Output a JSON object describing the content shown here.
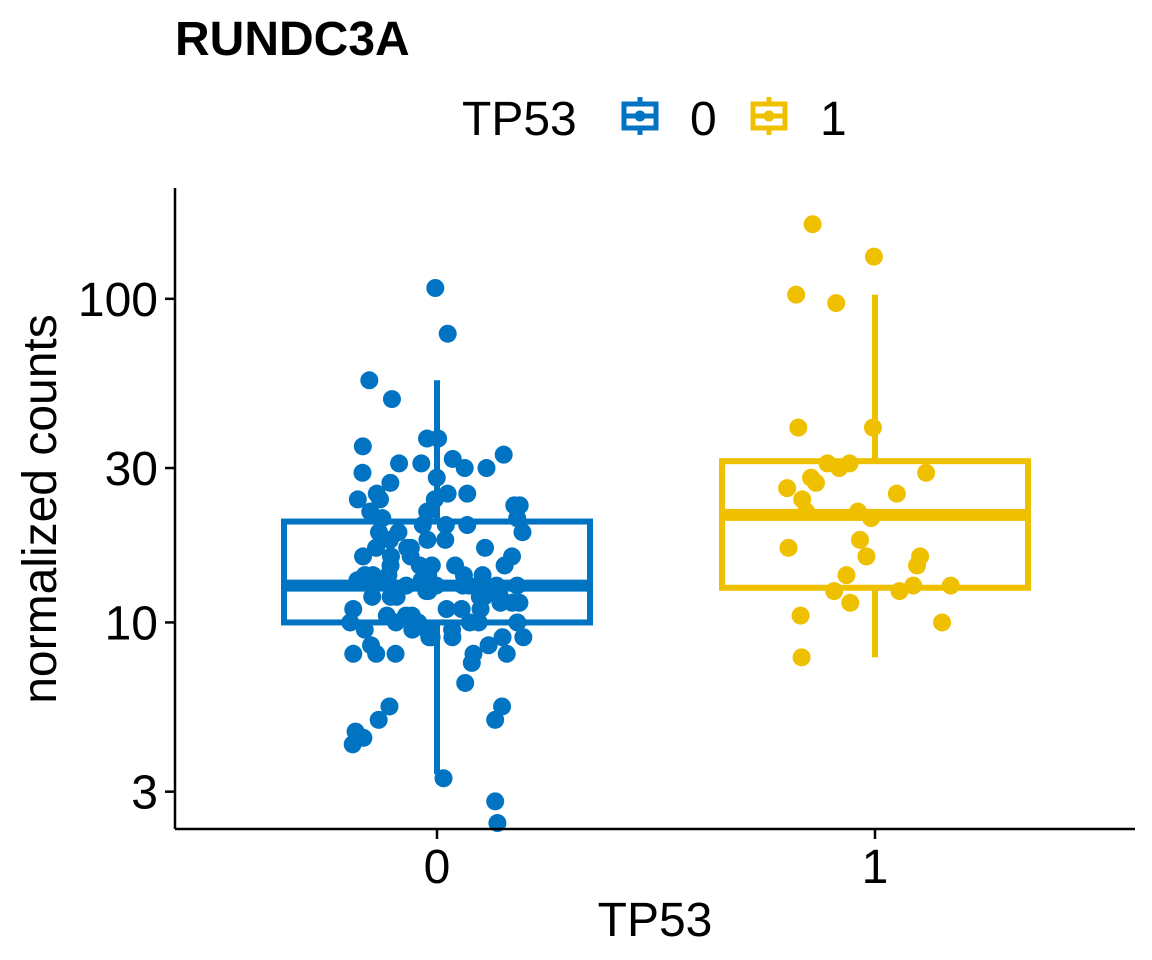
{
  "chart_data": {
    "type": "box",
    "title": "RUNDC3A",
    "xlabel": "TP53",
    "ylabel": "normalized counts",
    "y_scale": "log10",
    "ylim": [
      2.3,
      220
    ],
    "yticks": [
      3,
      10,
      30,
      100
    ],
    "ytick_labels": [
      "3",
      "10",
      "30",
      "100"
    ],
    "grid": false,
    "legend": {
      "title": "TP53",
      "position": "top",
      "entries": [
        "0",
        "1"
      ]
    },
    "categories": [
      "0",
      "1"
    ],
    "colors": {
      "0": "#0073C2",
      "1": "#EFC000"
    },
    "boxes": [
      {
        "category": "0",
        "lower_whisker": 3.4,
        "q1": 10.0,
        "median": 13.0,
        "q3": 20.5,
        "upper_whisker": 56.0
      },
      {
        "category": "1",
        "lower_whisker": 7.8,
        "q1": 12.8,
        "median": 21.5,
        "q3": 31.5,
        "upper_whisker": 103.0
      }
    ],
    "points": [
      {
        "category": "0",
        "values": [
          108,
          78,
          56,
          49,
          37,
          37,
          35,
          33,
          32,
          31,
          31,
          30,
          30,
          29,
          28,
          27,
          25,
          25,
          25,
          24,
          24,
          24,
          23,
          23,
          22,
          22,
          21,
          21,
          20,
          20,
          20,
          19,
          19,
          19,
          18,
          18,
          18,
          17,
          17,
          17,
          17,
          16,
          16,
          16,
          16,
          15,
          15,
          15,
          15,
          15,
          14,
          14,
          14,
          14,
          14,
          14,
          13.5,
          13.5,
          13,
          13,
          13,
          13,
          13,
          13,
          13,
          13,
          12.5,
          12.5,
          12.5,
          12,
          12,
          12,
          12,
          12,
          12,
          11.5,
          11.5,
          11.5,
          11,
          11,
          11,
          11,
          10.5,
          10.5,
          10.5,
          10,
          10,
          10,
          10,
          10,
          10,
          9.5,
          9.5,
          9.5,
          9.5,
          9,
          9,
          9,
          9,
          9,
          8.5,
          8.5,
          8,
          8,
          8,
          8,
          8,
          7.5,
          6.5,
          5.5,
          5.5,
          5,
          5,
          4.6,
          4.4,
          4.2,
          3.3,
          2.8,
          2.4
        ]
      },
      {
        "category": "1",
        "values": [
          170,
          135,
          103,
          97,
          40,
          40,
          31,
          31,
          30,
          29,
          28,
          27,
          26,
          25,
          24,
          22,
          22,
          21,
          18,
          17,
          16,
          16,
          15,
          14,
          13,
          13,
          12.5,
          12.5,
          11.5,
          10.5,
          10,
          7.8
        ]
      }
    ]
  }
}
